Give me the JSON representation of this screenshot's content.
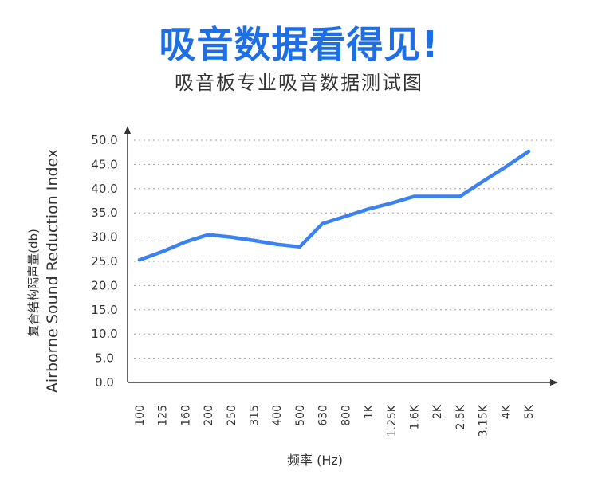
{
  "header": {
    "title": "吸音数据看得见!",
    "subtitle": "吸音板专业吸音数据测试图"
  },
  "chart_data": {
    "type": "line",
    "xlabel": "频率 (Hz)",
    "ylabel_cn": "复合结构隔声量(db)",
    "ylabel_en": "Airborne Sound Reduction Index",
    "ylim": [
      0,
      50
    ],
    "yticks": [
      "0.0",
      "5.0",
      "10.0",
      "15.0",
      "20.0",
      "25.0",
      "30.0",
      "35.0",
      "40.0",
      "45.0",
      "50.0"
    ],
    "grid": "horizontal dotted",
    "categories": [
      "100",
      "125",
      "160",
      "200",
      "250",
      "315",
      "400",
      "500",
      "630",
      "800",
      "1K",
      "1.25K",
      "1.6K",
      "2K",
      "2.5K",
      "3.15K",
      "4K",
      "5K"
    ],
    "series": [
      {
        "values": [
          25.3,
          27.0,
          29.0,
          30.5,
          30.0,
          29.3,
          28.5,
          28.0,
          32.8,
          34.3,
          35.8,
          37.0,
          38.4,
          38.4,
          38.4,
          41.5,
          44.5,
          47.7
        ],
        "color": "#3b82f0"
      }
    ]
  }
}
